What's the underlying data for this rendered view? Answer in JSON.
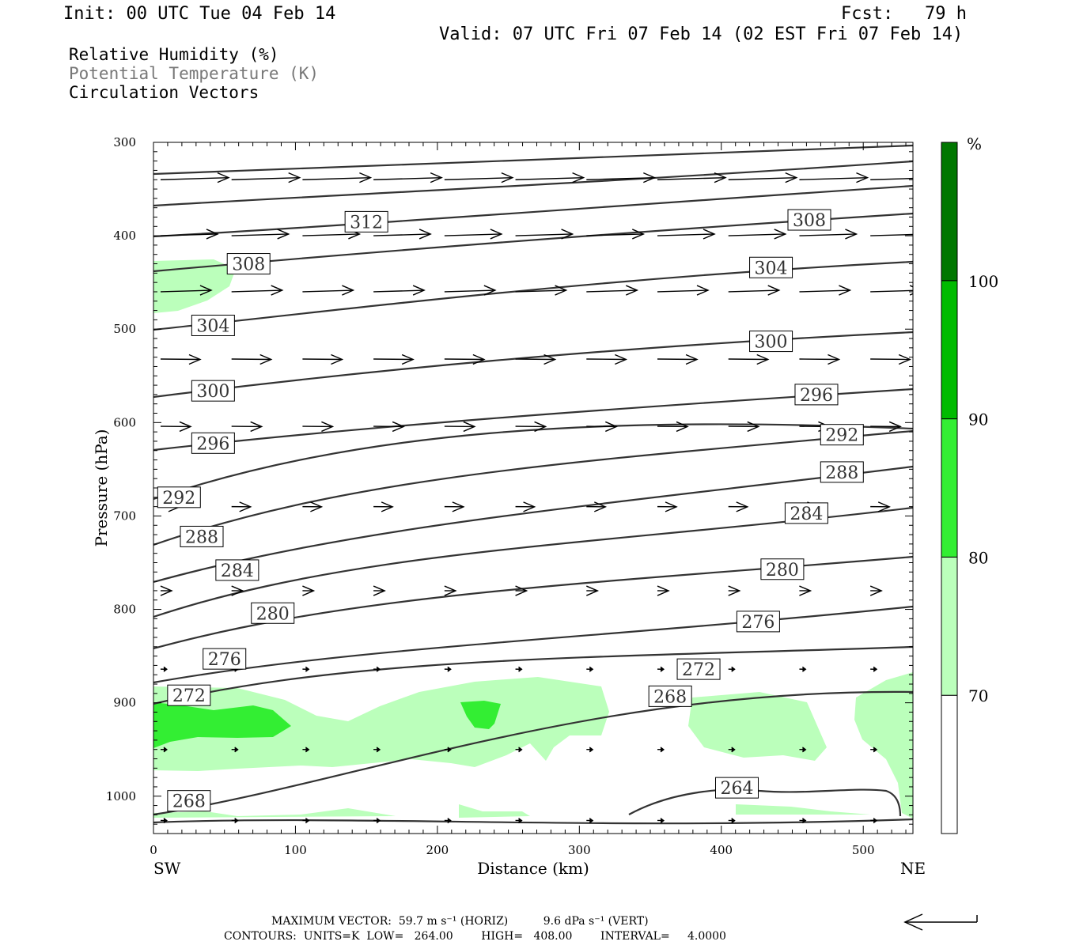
{
  "header": {
    "init": "Init: 00 UTC Tue 04 Feb 14",
    "fcst": "Fcst:   79 h",
    "valid": "Valid: 07 UTC Fri 07 Feb 14 (02 EST Fri 07 Feb 14)"
  },
  "fields": [
    "Relative Humidity (%)",
    "Potential Temperature (K)",
    "Circulation Vectors"
  ],
  "chart_data": {
    "type": "contour-cross-section",
    "xlabel": "Distance (km)",
    "ylabel": "Pressure (hPa)",
    "xlim": [
      0,
      535
    ],
    "ylim": [
      1040,
      300
    ],
    "x_ticks": [
      "0",
      "100",
      "200",
      "300",
      "400",
      "500"
    ],
    "y_ticks": [
      "300",
      "400",
      "500",
      "600",
      "700",
      "800",
      "900",
      "1000"
    ],
    "left_label": "SW",
    "right_label": "NE",
    "isentrope_labels": [
      {
        "text": "312",
        "x": 150,
        "p": 385
      },
      {
        "text": "308",
        "x": 462,
        "p": 383
      },
      {
        "text": "308",
        "x": 67,
        "p": 430
      },
      {
        "text": "304",
        "x": 435,
        "p": 434
      },
      {
        "text": "304",
        "x": 42,
        "p": 496
      },
      {
        "text": "300",
        "x": 435,
        "p": 513
      },
      {
        "text": "300",
        "x": 42,
        "p": 566
      },
      {
        "text": "296",
        "x": 467,
        "p": 570
      },
      {
        "text": "296",
        "x": 42,
        "p": 622
      },
      {
        "text": "292",
        "x": 485,
        "p": 613
      },
      {
        "text": "292",
        "x": 18,
        "p": 680
      },
      {
        "text": "288",
        "x": 485,
        "p": 653
      },
      {
        "text": "288",
        "x": 34,
        "p": 722
      },
      {
        "text": "284",
        "x": 460,
        "p": 697
      },
      {
        "text": "284",
        "x": 59,
        "p": 758
      },
      {
        "text": "280",
        "x": 443,
        "p": 757
      },
      {
        "text": "280",
        "x": 84,
        "p": 804
      },
      {
        "text": "276",
        "x": 426,
        "p": 813
      },
      {
        "text": "276",
        "x": 50,
        "p": 853
      },
      {
        "text": "272",
        "x": 384,
        "p": 864
      },
      {
        "text": "272",
        "x": 25,
        "p": 892
      },
      {
        "text": "268",
        "x": 364,
        "p": 893
      },
      {
        "text": "264",
        "x": 411,
        "p": 991
      },
      {
        "text": "268",
        "x": 25,
        "p": 1005
      }
    ],
    "rh_colorbar": {
      "unit": "%",
      "levels": [
        "70",
        "80",
        "90",
        "100"
      ],
      "colors": [
        "#ffffff",
        "#bbffbb",
        "#33ee33",
        "#00bb00",
        "#007700"
      ]
    },
    "vectors": "mostly westerly (left-to-right), strongest aloft, weakening toward the surface"
  },
  "footer": {
    "max_vector": "MAXIMUM VECTOR:  59.7 m s⁻¹ (HORIZ)          9.6 dPa s⁻¹ (VERT)",
    "contours": "CONTOURS:  UNITS=K  LOW=   264.00        HIGH=   408.00        INTERVAL=     4.0000"
  },
  "colors": {
    "contour": "#333333",
    "rh_light": "#bbffbb",
    "rh_mid": "#33ee33"
  }
}
